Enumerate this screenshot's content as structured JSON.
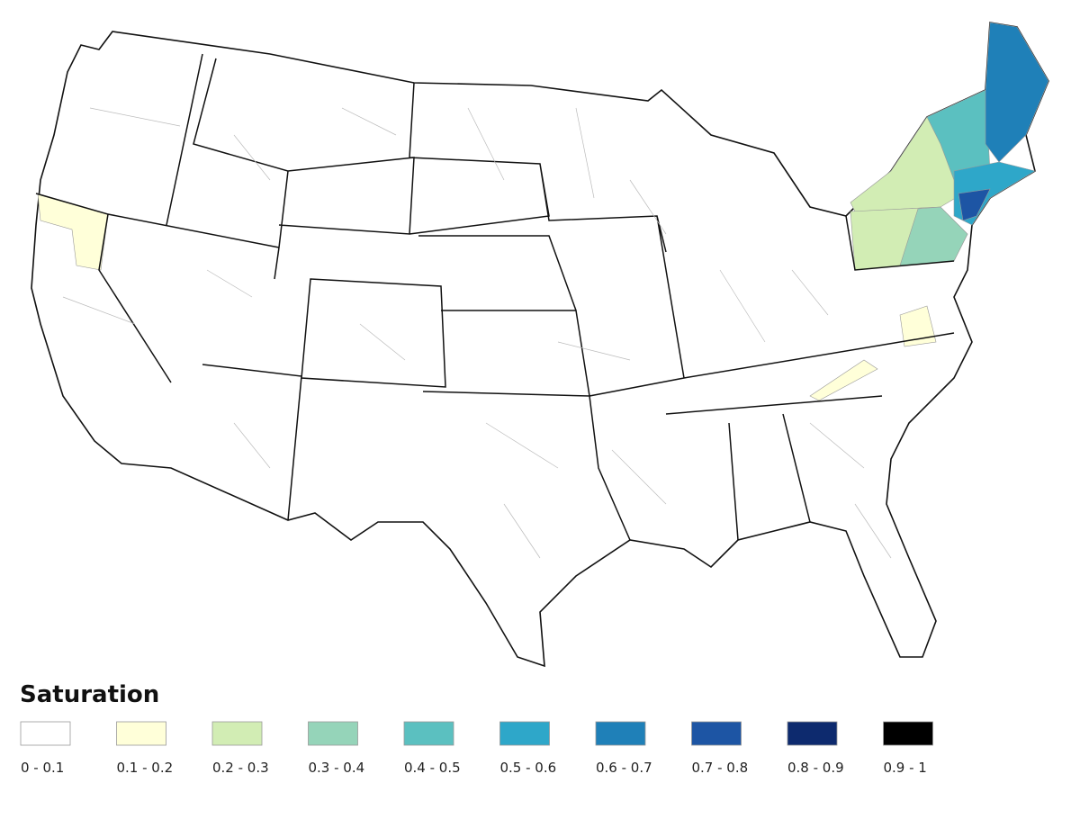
{
  "legend": {
    "title": "Saturation",
    "items": [
      {
        "label": "0 - 0.1",
        "color": "#ffffff"
      },
      {
        "label": "0.1 - 0.2",
        "color": "#ffffd9"
      },
      {
        "label": "0.2 - 0.3",
        "color": "#d2edb4"
      },
      {
        "label": "0.3 - 0.4",
        "color": "#95d4b9"
      },
      {
        "label": "0.4 - 0.5",
        "color": "#5bc0c0"
      },
      {
        "label": "0.5 - 0.6",
        "color": "#2ea7c9"
      },
      {
        "label": "0.6 - 0.7",
        "color": "#1f80b8"
      },
      {
        "label": "0.7 - 0.8",
        "color": "#1d55a4"
      },
      {
        "label": "0.8 - 0.9",
        "color": "#0d2a6e"
      },
      {
        "label": "0.9 - 1",
        "color": "#000000"
      }
    ]
  }
}
